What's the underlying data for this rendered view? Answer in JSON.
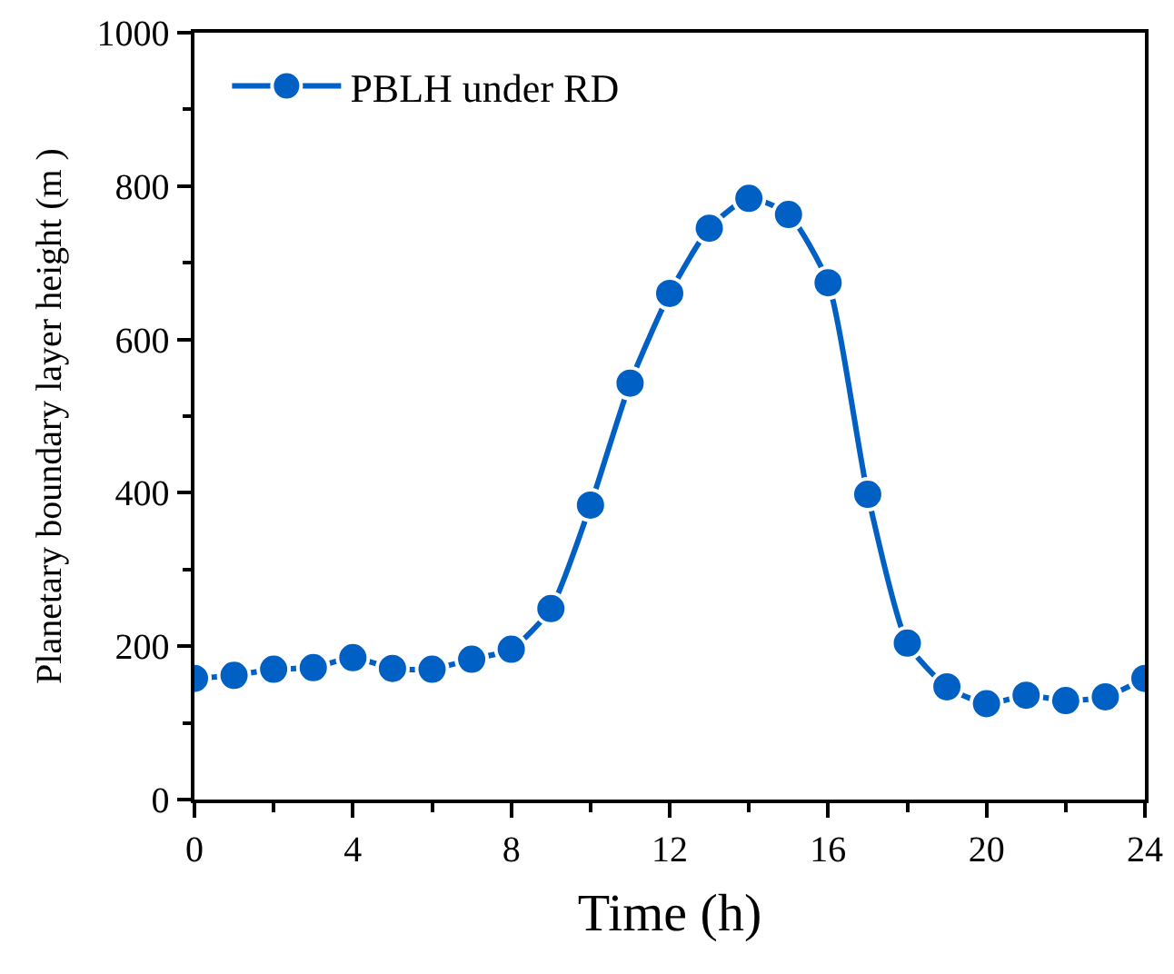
{
  "chart_data": {
    "type": "line",
    "xlabel": "Time (h)",
    "ylabel": "Planetary boundary layer height (m )",
    "x": [
      0,
      1,
      2,
      3,
      4,
      5,
      6,
      7,
      8,
      9,
      10,
      11,
      12,
      13,
      14,
      15,
      16,
      17,
      18,
      19,
      20,
      21,
      22,
      23,
      24
    ],
    "series": [
      {
        "name": "PBLH under RD",
        "color": "#0060c4",
        "values": [
          158,
          162,
          170,
          172,
          185,
          171,
          170,
          183,
          196,
          249,
          384,
          543,
          660,
          745,
          784,
          763,
          674,
          398,
          204,
          147,
          125,
          136,
          129,
          134,
          158
        ]
      }
    ],
    "xlim": [
      0,
      24
    ],
    "xticks": [
      0,
      {
        "value": 2,
        "label": null
      },
      4,
      {
        "value": 6,
        "label": null
      },
      8,
      {
        "value": 10,
        "label": null
      },
      12,
      {
        "value": 14,
        "label": null
      },
      16,
      {
        "value": 18,
        "label": null
      },
      20,
      {
        "value": 22,
        "label": null
      },
      24
    ],
    "ylim": [
      0,
      1000
    ],
    "yticks": [
      0,
      {
        "value": 100,
        "label": null
      },
      200,
      {
        "value": 300,
        "label": null
      },
      400,
      {
        "value": 500,
        "label": null
      },
      600,
      {
        "value": 700,
        "label": null
      },
      800,
      {
        "value": 900,
        "label": null
      },
      1000
    ],
    "grid": false,
    "legend": "top left",
    "marker": "circle",
    "line_style": "solid"
  }
}
